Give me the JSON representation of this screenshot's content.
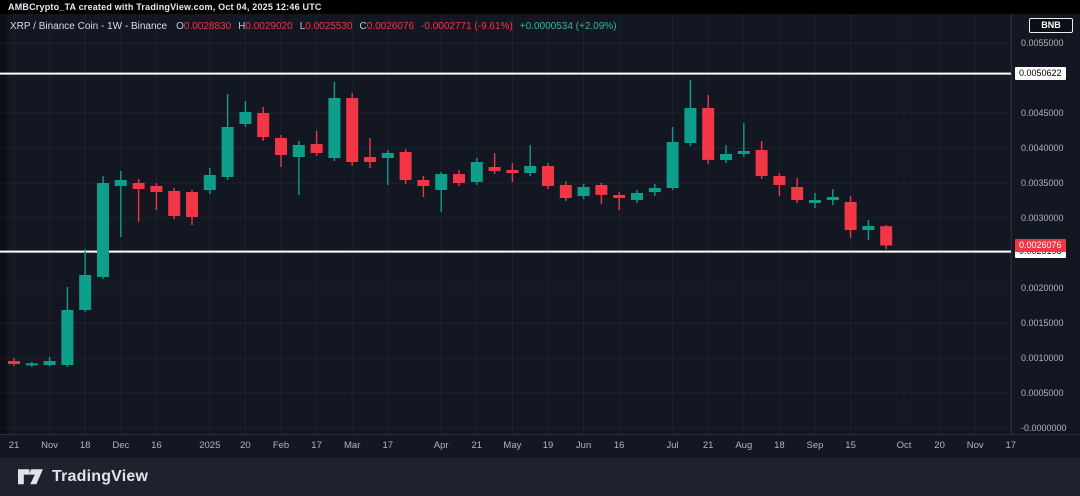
{
  "attribution": "AMBCrypto_TA created with TradingView.com, Oct 04, 2025 12:46 UTC",
  "legend": {
    "title": "XRP / Binance Coin - 1W - Binance",
    "ohlc": {
      "o_label": "O",
      "o": "0.0028830",
      "h_label": "H",
      "h": "0.0029020",
      "l_label": "L",
      "l": "0.0025530",
      "c_label": "C",
      "c": "0.0026076"
    },
    "change": "-0.0002771 (-9.61%)",
    "change_secondary": "+0.0000534 (+2.09%)"
  },
  "symbol_button": "BNB",
  "colors": {
    "up": "#0d9e8c",
    "down": "#f23645",
    "background": "#131722",
    "grid": "rgba(240,243,250,0.05)",
    "axis_text": "#b2b5be",
    "level_line": "#ffffff",
    "current_price_flag": "#f23645"
  },
  "price_axis": {
    "ticks": [
      {
        "label": "0.0055000",
        "value": 0.0055
      },
      {
        "label": "0.0045000",
        "value": 0.0045
      },
      {
        "label": "0.0040000",
        "value": 0.004
      },
      {
        "label": "0.0035000",
        "value": 0.0035
      },
      {
        "label": "0.0030000",
        "value": 0.003
      },
      {
        "label": "0.0020000",
        "value": 0.002
      },
      {
        "label": "0.0015000",
        "value": 0.0015
      },
      {
        "label": "0.0010000",
        "value": 0.001
      },
      {
        "label": "0.0005000",
        "value": 0.0005
      },
      {
        "label": "-0.0000000",
        "value": 0.0
      }
    ],
    "line_labels": [
      {
        "label": "0.0050622",
        "value": 0.0050622
      },
      {
        "label": "0.0025198",
        "value": 0.0025198
      }
    ],
    "current": {
      "label": "0.0026076",
      "value": 0.0026076
    }
  },
  "time_axis": {
    "labels": [
      {
        "label": "21",
        "i": 0
      },
      {
        "label": "Nov",
        "i": 2
      },
      {
        "label": "18",
        "i": 4
      },
      {
        "label": "Dec",
        "i": 6
      },
      {
        "label": "16",
        "i": 8
      },
      {
        "label": "2025",
        "i": 11
      },
      {
        "label": "20",
        "i": 13
      },
      {
        "label": "Feb",
        "i": 15
      },
      {
        "label": "17",
        "i": 17
      },
      {
        "label": "Mar",
        "i": 19
      },
      {
        "label": "17",
        "i": 21
      },
      {
        "label": "Apr",
        "i": 24
      },
      {
        "label": "21",
        "i": 26
      },
      {
        "label": "May",
        "i": 28
      },
      {
        "label": "19",
        "i": 30
      },
      {
        "label": "Jun",
        "i": 32
      },
      {
        "label": "16",
        "i": 34
      },
      {
        "label": "Jul",
        "i": 37
      },
      {
        "label": "21",
        "i": 39
      },
      {
        "label": "Aug",
        "i": 41
      },
      {
        "label": "18",
        "i": 43
      },
      {
        "label": "Sep",
        "i": 45
      },
      {
        "label": "15",
        "i": 47
      },
      {
        "label": "Oct",
        "i": 50
      },
      {
        "label": "20",
        "i": 52
      },
      {
        "label": "Nov",
        "i": 54
      },
      {
        "label": "17",
        "i": 56
      }
    ]
  },
  "footer": {
    "brand": "TradingView"
  },
  "chart_data": {
    "type": "candlestick",
    "symbol": "XRP / Binance Coin",
    "exchange": "Binance",
    "interval": "1W",
    "ylim": [
      0.0,
      0.0057
    ],
    "grid": true,
    "hlines": [
      0.0050622,
      0.0025198
    ],
    "current_price": 0.0026076,
    "candles": [
      {
        "d": "2024-10-21",
        "o": 0.000957,
        "h": 0.001,
        "l": 0.000886,
        "c": 0.000914
      },
      {
        "d": "2024-10-28",
        "o": 0.0009,
        "h": 0.000943,
        "l": 0.000871,
        "c": 0.000921
      },
      {
        "d": "2024-11-04",
        "o": 0.0009,
        "h": 0.001014,
        "l": 0.00088,
        "c": 0.000957
      },
      {
        "d": "2024-11-11",
        "o": 0.0009,
        "h": 0.002014,
        "l": 0.000871,
        "c": 0.001686
      },
      {
        "d": "2024-11-18",
        "o": 0.001686,
        "h": 0.002557,
        "l": 0.001657,
        "c": 0.002186
      },
      {
        "d": "2024-11-25",
        "o": 0.002157,
        "h": 0.0036,
        "l": 0.002129,
        "c": 0.0035
      },
      {
        "d": "2024-12-02",
        "o": 0.003457,
        "h": 0.003671,
        "l": 0.002729,
        "c": 0.003543
      },
      {
        "d": "2024-12-09",
        "o": 0.0035,
        "h": 0.003557,
        "l": 0.002943,
        "c": 0.003414
      },
      {
        "d": "2024-12-16",
        "o": 0.003457,
        "h": 0.0035,
        "l": 0.003114,
        "c": 0.003371
      },
      {
        "d": "2024-12-23",
        "o": 0.003386,
        "h": 0.003429,
        "l": 0.002986,
        "c": 0.003029
      },
      {
        "d": "2024-12-30",
        "o": 0.003371,
        "h": 0.0034,
        "l": 0.0029,
        "c": 0.003014
      },
      {
        "d": "2025-01-06",
        "o": 0.0034,
        "h": 0.003714,
        "l": 0.003343,
        "c": 0.003614
      },
      {
        "d": "2025-01-13",
        "o": 0.003586,
        "h": 0.004771,
        "l": 0.003543,
        "c": 0.0043
      },
      {
        "d": "2025-01-20",
        "o": 0.004343,
        "h": 0.004671,
        "l": 0.0043,
        "c": 0.004514
      },
      {
        "d": "2025-01-27",
        "o": 0.0045,
        "h": 0.004586,
        "l": 0.0041,
        "c": 0.004157
      },
      {
        "d": "2025-02-03",
        "o": 0.004143,
        "h": 0.004186,
        "l": 0.003729,
        "c": 0.0039
      },
      {
        "d": "2025-02-10",
        "o": 0.003871,
        "h": 0.0041,
        "l": 0.003329,
        "c": 0.004043
      },
      {
        "d": "2025-02-17",
        "o": 0.004057,
        "h": 0.004243,
        "l": 0.003886,
        "c": 0.003929
      },
      {
        "d": "2025-02-24",
        "o": 0.003857,
        "h": 0.004943,
        "l": 0.003814,
        "c": 0.004714
      },
      {
        "d": "2025-03-03",
        "o": 0.004714,
        "h": 0.004786,
        "l": 0.003743,
        "c": 0.0038
      },
      {
        "d": "2025-03-10",
        "o": 0.003871,
        "h": 0.004143,
        "l": 0.003714,
        "c": 0.0038
      },
      {
        "d": "2025-03-17",
        "o": 0.003857,
        "h": 0.003971,
        "l": 0.003471,
        "c": 0.003929
      },
      {
        "d": "2025-03-24",
        "o": 0.003943,
        "h": 0.003986,
        "l": 0.003486,
        "c": 0.003543
      },
      {
        "d": "2025-03-31",
        "o": 0.003543,
        "h": 0.0036,
        "l": 0.0033,
        "c": 0.003457
      },
      {
        "d": "2025-04-07",
        "o": 0.0034,
        "h": 0.003657,
        "l": 0.003086,
        "c": 0.003629
      },
      {
        "d": "2025-04-14",
        "o": 0.003629,
        "h": 0.003686,
        "l": 0.003457,
        "c": 0.0035
      },
      {
        "d": "2025-04-21",
        "o": 0.003514,
        "h": 0.003857,
        "l": 0.003471,
        "c": 0.0038
      },
      {
        "d": "2025-04-28",
        "o": 0.003729,
        "h": 0.003929,
        "l": 0.003629,
        "c": 0.003671
      },
      {
        "d": "2025-05-05",
        "o": 0.003686,
        "h": 0.003786,
        "l": 0.003514,
        "c": 0.003643
      },
      {
        "d": "2025-05-12",
        "o": 0.003643,
        "h": 0.004043,
        "l": 0.0036,
        "c": 0.003743
      },
      {
        "d": "2025-05-19",
        "o": 0.003743,
        "h": 0.003786,
        "l": 0.003414,
        "c": 0.003457
      },
      {
        "d": "2025-05-26",
        "o": 0.003471,
        "h": 0.003529,
        "l": 0.003243,
        "c": 0.003286
      },
      {
        "d": "2025-06-02",
        "o": 0.003314,
        "h": 0.003486,
        "l": 0.003271,
        "c": 0.003443
      },
      {
        "d": "2025-06-09",
        "o": 0.003471,
        "h": 0.0035,
        "l": 0.0032,
        "c": 0.003329
      },
      {
        "d": "2025-06-16",
        "o": 0.003329,
        "h": 0.003371,
        "l": 0.003114,
        "c": 0.003286
      },
      {
        "d": "2025-06-23",
        "o": 0.003257,
        "h": 0.0034,
        "l": 0.003214,
        "c": 0.003357
      },
      {
        "d": "2025-06-30",
        "o": 0.003371,
        "h": 0.003486,
        "l": 0.003314,
        "c": 0.003429
      },
      {
        "d": "2025-07-07",
        "o": 0.003429,
        "h": 0.0043,
        "l": 0.0034,
        "c": 0.004086
      },
      {
        "d": "2025-07-14",
        "o": 0.004071,
        "h": 0.004971,
        "l": 0.004029,
        "c": 0.004571
      },
      {
        "d": "2025-07-21",
        "o": 0.004571,
        "h": 0.004757,
        "l": 0.003771,
        "c": 0.003829
      },
      {
        "d": "2025-07-28",
        "o": 0.003829,
        "h": 0.004043,
        "l": 0.003786,
        "c": 0.003914
      },
      {
        "d": "2025-08-04",
        "o": 0.003914,
        "h": 0.004357,
        "l": 0.003871,
        "c": 0.003957
      },
      {
        "d": "2025-08-11",
        "o": 0.003971,
        "h": 0.0041,
        "l": 0.003557,
        "c": 0.0036
      },
      {
        "d": "2025-08-18",
        "o": 0.0036,
        "h": 0.003643,
        "l": 0.003314,
        "c": 0.003471
      },
      {
        "d": "2025-08-25",
        "o": 0.003443,
        "h": 0.003571,
        "l": 0.003214,
        "c": 0.003257
      },
      {
        "d": "2025-09-01",
        "o": 0.003214,
        "h": 0.003357,
        "l": 0.003143,
        "c": 0.003257
      },
      {
        "d": "2025-09-08",
        "o": 0.003257,
        "h": 0.003414,
        "l": 0.003186,
        "c": 0.0033
      },
      {
        "d": "2025-09-15",
        "o": 0.003229,
        "h": 0.003314,
        "l": 0.002714,
        "c": 0.002829
      },
      {
        "d": "2025-09-22",
        "o": 0.002829,
        "h": 0.002971,
        "l": 0.002686,
        "c": 0.002886
      },
      {
        "d": "2025-09-29",
        "o": 0.002883,
        "h": 0.002902,
        "l": 0.002553,
        "c": 0.0026076
      }
    ]
  }
}
